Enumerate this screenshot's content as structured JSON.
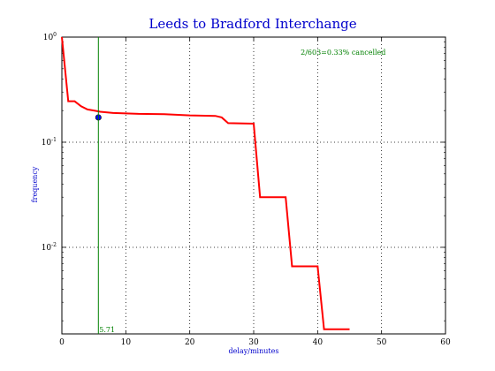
{
  "chart_data": {
    "type": "line",
    "title": "Leeds to Bradford Interchange",
    "xlabel": "delay/minutes",
    "ylabel": "frequency",
    "xlim": [
      0,
      60
    ],
    "ylim": [
      0.0015,
      1.0
    ],
    "y_scale": "log",
    "grid": true,
    "x_ticks": [
      0,
      10,
      20,
      30,
      40,
      50,
      60
    ],
    "y_ticks": [
      {
        "value": 0.01,
        "base": "10",
        "exp": "-2"
      },
      {
        "value": 0.1,
        "base": "10",
        "exp": "-1"
      },
      {
        "value": 1.0,
        "base": "10",
        "exp": "0"
      }
    ],
    "series": [
      {
        "color": "#ff0000",
        "x": [
          0,
          1,
          2,
          3,
          4,
          5,
          6,
          8,
          10,
          12,
          16,
          20,
          24,
          25,
          26,
          30,
          31,
          35,
          36,
          40,
          41,
          45
        ],
        "y": [
          1.0,
          0.245,
          0.245,
          0.22,
          0.205,
          0.2,
          0.195,
          0.19,
          0.188,
          0.186,
          0.185,
          0.18,
          0.178,
          0.172,
          0.152,
          0.15,
          0.03,
          0.03,
          0.0066,
          0.0066,
          0.00166,
          0.00166
        ]
      }
    ],
    "marker_point": {
      "x": 5.71,
      "y": 0.172,
      "color": "#0000ff"
    },
    "vertical_line": {
      "x": 5.71,
      "color": "#008000",
      "label": "5.71"
    },
    "annotation": {
      "text": "2/603=0.33% cancelled",
      "x": 44,
      "y": 0.68,
      "color": "#008000"
    }
  }
}
